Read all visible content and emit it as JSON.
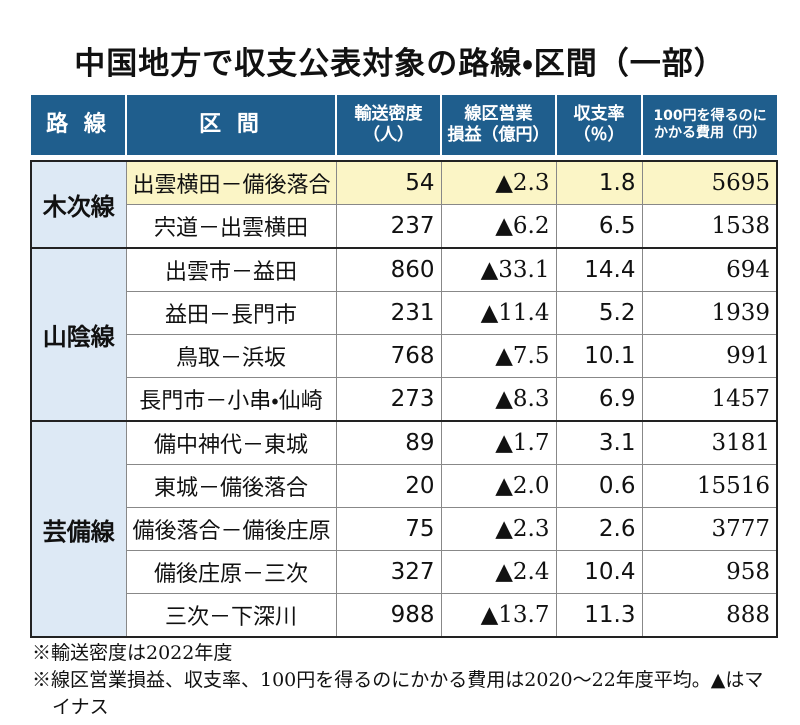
{
  "title": "中国地方で収支公表対象の路線・区間（一部）",
  "table": {
    "headers": [
      [
        "路 線"
      ],
      [
        "区 間"
      ],
      [
        "輸送密度",
        "（人）"
      ],
      [
        "線区営業",
        "損益（億円）"
      ],
      [
        "収支率",
        "（％）"
      ],
      [
        "100円を得るのに",
        "かかる費用（円）"
      ]
    ],
    "groups": [
      {
        "line": "木次線",
        "rows": [
          [
            "出雲横田－備後落合",
            54,
            "▲2.3",
            1.8,
            5695
          ],
          [
            "宍道－出雲横田",
            237,
            "▲6.2",
            6.5,
            1538
          ]
        ]
      },
      {
        "line": "山陰線",
        "rows": [
          [
            "出雲市－益田",
            860,
            "▲33.1",
            14.4,
            694
          ],
          [
            "益田－長門市",
            231,
            "▲11.4",
            5.2,
            1939
          ],
          [
            "鳥取－浜坂",
            768,
            "▲7.5",
            10.1,
            991
          ],
          [
            "長門市－小串・仙崎",
            273,
            "▲8.3",
            6.9,
            1457
          ]
        ]
      },
      {
        "line": "芸備線",
        "rows": [
          [
            "備中神代－東城",
            89,
            "▲1.7",
            3.1,
            3181
          ],
          [
            "東城－備後落合",
            20,
            "▲2.0",
            0.6,
            15516
          ],
          [
            "備後落合－備後庄原",
            75,
            "▲2.3",
            2.6,
            3777
          ],
          [
            "備後庄原－三次",
            327,
            "▲2.4",
            10.4,
            958
          ],
          [
            "三次－下深川",
            988,
            "▲13.7",
            11.3,
            888
          ]
        ]
      }
    ]
  },
  "notes": [
    "※輸送密度は2022年度",
    "※線区営業損益、収支率、100円を得るのにかかる費用は2020～22年度平均。▲はマイナス"
  ]
}
